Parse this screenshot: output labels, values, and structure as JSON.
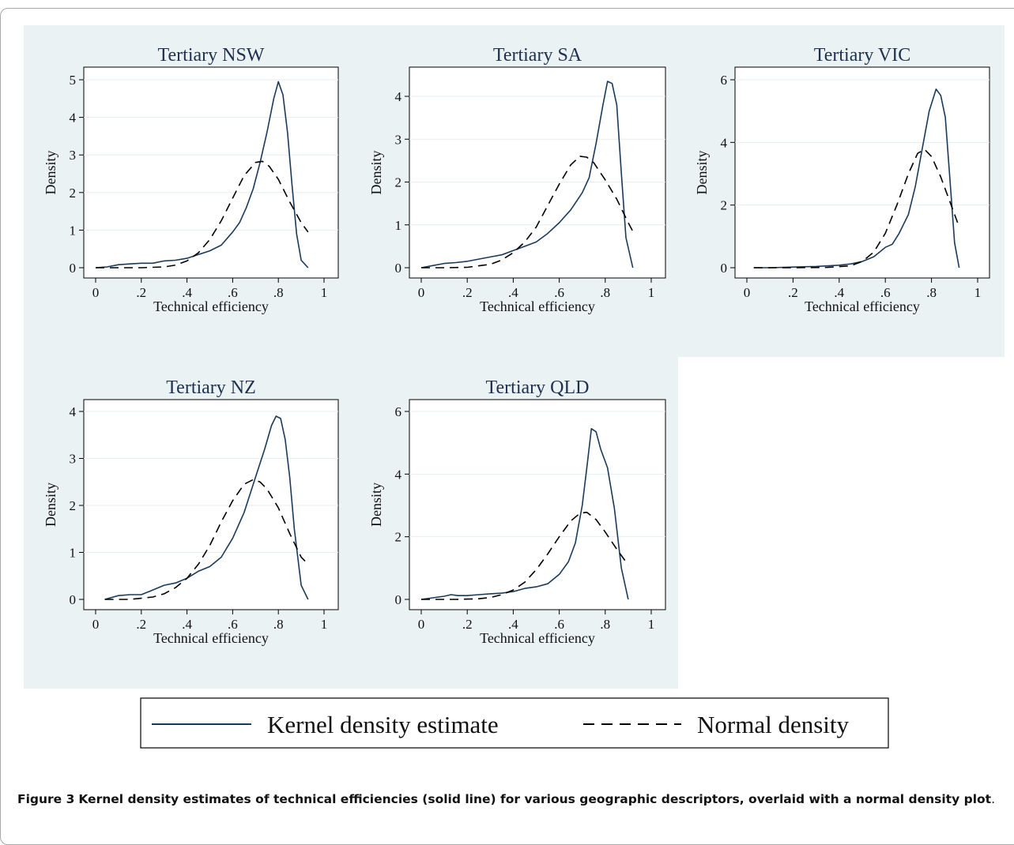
{
  "legend": {
    "kernel_label": "Kernel density estimate",
    "normal_label": "Normal density",
    "kernel_color": "#1a3a5c",
    "normal_color": "#000000"
  },
  "caption": {
    "prefix": "Figure 3",
    "text": "Kernel density estimates of technical efficiencies (solid line) for various geographic descriptors, overlaid with a normal density plot",
    "suffix": "."
  },
  "chart_data": [
    {
      "type": "line",
      "title": "Tertiary NSW",
      "xlabel": "Technical efficiency",
      "ylabel": "Density",
      "xlim": [
        0,
        1
      ],
      "ylim": [
        0,
        5
      ],
      "xticks": [
        0,
        0.2,
        0.4,
        0.6,
        0.8,
        1
      ],
      "xtick_labels": [
        "0",
        ".2",
        ".4",
        ".6",
        ".8",
        "1"
      ],
      "yticks": [
        0,
        1,
        2,
        3,
        4,
        5
      ],
      "ytick_labels": [
        "0",
        "1",
        "2",
        "3",
        "4",
        "5"
      ],
      "grid": true,
      "series": [
        {
          "name": "Kernel density estimate",
          "x": [
            0,
            0.05,
            0.1,
            0.15,
            0.2,
            0.25,
            0.3,
            0.35,
            0.4,
            0.45,
            0.5,
            0.55,
            0.6,
            0.63,
            0.66,
            0.69,
            0.72,
            0.75,
            0.78,
            0.8,
            0.82,
            0.84,
            0.86,
            0.88,
            0.9,
            0.93
          ],
          "y": [
            0,
            0.02,
            0.08,
            0.1,
            0.12,
            0.12,
            0.18,
            0.2,
            0.25,
            0.35,
            0.45,
            0.6,
            0.95,
            1.2,
            1.6,
            2.1,
            2.8,
            3.6,
            4.5,
            4.95,
            4.6,
            3.6,
            2.2,
            0.9,
            0.2,
            0
          ]
        },
        {
          "name": "Normal density",
          "x": [
            0,
            0.1,
            0.2,
            0.3,
            0.35,
            0.4,
            0.45,
            0.5,
            0.55,
            0.6,
            0.65,
            0.7,
            0.73,
            0.76,
            0.8,
            0.85,
            0.9,
            0.93
          ],
          "y": [
            0,
            0,
            0,
            0.02,
            0.07,
            0.18,
            0.4,
            0.75,
            1.25,
            1.85,
            2.45,
            2.8,
            2.83,
            2.7,
            2.35,
            1.75,
            1.2,
            0.95
          ]
        }
      ]
    },
    {
      "type": "line",
      "title": "Tertiary SA",
      "xlabel": "Technical efficiency",
      "ylabel": "Density",
      "xlim": [
        0,
        1
      ],
      "ylim": [
        0,
        4
      ],
      "xticks": [
        0,
        0.2,
        0.4,
        0.6,
        0.8,
        1
      ],
      "xtick_labels": [
        "0",
        ".2",
        ".4",
        ".6",
        ".8",
        "1"
      ],
      "yticks": [
        0,
        1,
        2,
        3,
        4
      ],
      "ytick_labels": [
        "0",
        "1",
        "2",
        "3",
        "4"
      ],
      "grid": true,
      "series": [
        {
          "name": "Kernel density estimate",
          "x": [
            0,
            0.05,
            0.1,
            0.15,
            0.2,
            0.25,
            0.3,
            0.35,
            0.4,
            0.45,
            0.5,
            0.55,
            0.6,
            0.65,
            0.7,
            0.73,
            0.76,
            0.79,
            0.81,
            0.83,
            0.85,
            0.87,
            0.89,
            0.92
          ],
          "y": [
            0,
            0.05,
            0.1,
            0.12,
            0.15,
            0.2,
            0.25,
            0.3,
            0.4,
            0.5,
            0.6,
            0.8,
            1.05,
            1.35,
            1.75,
            2.1,
            2.9,
            3.8,
            4.35,
            4.3,
            3.8,
            2.2,
            0.7,
            0
          ]
        },
        {
          "name": "Normal density",
          "x": [
            0,
            0.1,
            0.2,
            0.3,
            0.35,
            0.4,
            0.45,
            0.5,
            0.55,
            0.6,
            0.65,
            0.69,
            0.72,
            0.75,
            0.8,
            0.85,
            0.9,
            0.92
          ],
          "y": [
            0,
            0,
            0.01,
            0.08,
            0.18,
            0.35,
            0.6,
            0.95,
            1.45,
            1.95,
            2.4,
            2.6,
            2.58,
            2.45,
            2.05,
            1.6,
            1.05,
            0.85
          ]
        }
      ]
    },
    {
      "type": "line",
      "title": "Tertiary VIC",
      "xlabel": "Technical efficiency",
      "ylabel": "Density",
      "xlim": [
        0,
        1
      ],
      "ylim": [
        0,
        6
      ],
      "xticks": [
        0,
        0.2,
        0.4,
        0.6,
        0.8,
        1
      ],
      "xtick_labels": [
        "0",
        ".2",
        ".4",
        ".6",
        ".8",
        "1"
      ],
      "yticks": [
        0,
        2,
        4,
        6
      ],
      "ytick_labels": [
        "0",
        "2",
        "4",
        "6"
      ],
      "grid": true,
      "series": [
        {
          "name": "Kernel density estimate",
          "x": [
            0.03,
            0.1,
            0.2,
            0.3,
            0.4,
            0.45,
            0.5,
            0.55,
            0.6,
            0.63,
            0.66,
            0.7,
            0.73,
            0.76,
            0.79,
            0.82,
            0.84,
            0.86,
            0.88,
            0.9,
            0.92
          ],
          "y": [
            0,
            0,
            0.02,
            0.04,
            0.08,
            0.12,
            0.2,
            0.35,
            0.65,
            0.75,
            1.1,
            1.7,
            2.6,
            3.8,
            5.0,
            5.7,
            5.5,
            4.8,
            2.8,
            0.8,
            0
          ]
        },
        {
          "name": "Normal density",
          "x": [
            0.03,
            0.2,
            0.35,
            0.45,
            0.5,
            0.55,
            0.6,
            0.65,
            0.7,
            0.74,
            0.77,
            0.8,
            0.84,
            0.88,
            0.92
          ],
          "y": [
            0,
            0,
            0.01,
            0.06,
            0.2,
            0.5,
            1.1,
            2.0,
            3.0,
            3.65,
            3.78,
            3.55,
            2.9,
            2.1,
            1.3
          ]
        }
      ]
    },
    {
      "type": "line",
      "title": "Tertiary NZ",
      "xlabel": "Technical efficiency",
      "ylabel": "Density",
      "xlim": [
        0,
        1
      ],
      "ylim": [
        0,
        4
      ],
      "xticks": [
        0,
        0.2,
        0.4,
        0.6,
        0.8,
        1
      ],
      "xtick_labels": [
        "0",
        ".2",
        ".4",
        ".6",
        ".8",
        "1"
      ],
      "yticks": [
        0,
        1,
        2,
        3,
        4
      ],
      "ytick_labels": [
        "0",
        "1",
        "2",
        "3",
        "4"
      ],
      "grid": true,
      "series": [
        {
          "name": "Kernel density estimate",
          "x": [
            0.04,
            0.1,
            0.15,
            0.2,
            0.25,
            0.3,
            0.35,
            0.4,
            0.45,
            0.5,
            0.55,
            0.6,
            0.65,
            0.7,
            0.74,
            0.77,
            0.79,
            0.81,
            0.83,
            0.85,
            0.87,
            0.9,
            0.93
          ],
          "y": [
            0,
            0.08,
            0.1,
            0.1,
            0.2,
            0.3,
            0.35,
            0.45,
            0.6,
            0.7,
            0.9,
            1.3,
            1.85,
            2.6,
            3.2,
            3.7,
            3.9,
            3.85,
            3.4,
            2.6,
            1.5,
            0.3,
            0
          ]
        },
        {
          "name": "Normal density",
          "x": [
            0.04,
            0.15,
            0.25,
            0.3,
            0.35,
            0.4,
            0.45,
            0.5,
            0.55,
            0.6,
            0.65,
            0.69,
            0.72,
            0.75,
            0.8,
            0.85,
            0.9,
            0.93
          ],
          "y": [
            0,
            0,
            0.05,
            0.12,
            0.25,
            0.45,
            0.75,
            1.15,
            1.65,
            2.1,
            2.45,
            2.55,
            2.5,
            2.35,
            1.95,
            1.4,
            0.9,
            0.75
          ]
        }
      ]
    },
    {
      "type": "line",
      "title": "Tertiary QLD",
      "xlabel": "Technical efficiency",
      "ylabel": "Density",
      "xlim": [
        0,
        1
      ],
      "ylim": [
        0,
        6
      ],
      "xticks": [
        0,
        0.2,
        0.4,
        0.6,
        0.8,
        1
      ],
      "xtick_labels": [
        "0",
        ".2",
        ".4",
        ".6",
        ".8",
        "1"
      ],
      "yticks": [
        0,
        2,
        4,
        6
      ],
      "ytick_labels": [
        "0",
        "2",
        "4",
        "6"
      ],
      "grid": true,
      "series": [
        {
          "name": "Kernel density estimate",
          "x": [
            0,
            0.05,
            0.1,
            0.13,
            0.16,
            0.2,
            0.25,
            0.3,
            0.35,
            0.4,
            0.45,
            0.5,
            0.55,
            0.6,
            0.64,
            0.67,
            0.7,
            0.72,
            0.74,
            0.76,
            0.78,
            0.81,
            0.84,
            0.87,
            0.9
          ],
          "y": [
            0,
            0.05,
            0.1,
            0.15,
            0.12,
            0.12,
            0.15,
            0.18,
            0.2,
            0.25,
            0.35,
            0.4,
            0.5,
            0.8,
            1.2,
            1.8,
            3.0,
            4.2,
            5.45,
            5.35,
            4.8,
            4.2,
            2.9,
            1.0,
            0
          ]
        },
        {
          "name": "Normal density",
          "x": [
            0,
            0.15,
            0.25,
            0.3,
            0.35,
            0.4,
            0.45,
            0.5,
            0.55,
            0.6,
            0.65,
            0.69,
            0.72,
            0.76,
            0.8,
            0.85,
            0.9
          ],
          "y": [
            0,
            0,
            0.02,
            0.06,
            0.15,
            0.3,
            0.55,
            0.95,
            1.45,
            2.0,
            2.5,
            2.75,
            2.78,
            2.55,
            2.15,
            1.6,
            1.1
          ]
        }
      ]
    }
  ]
}
